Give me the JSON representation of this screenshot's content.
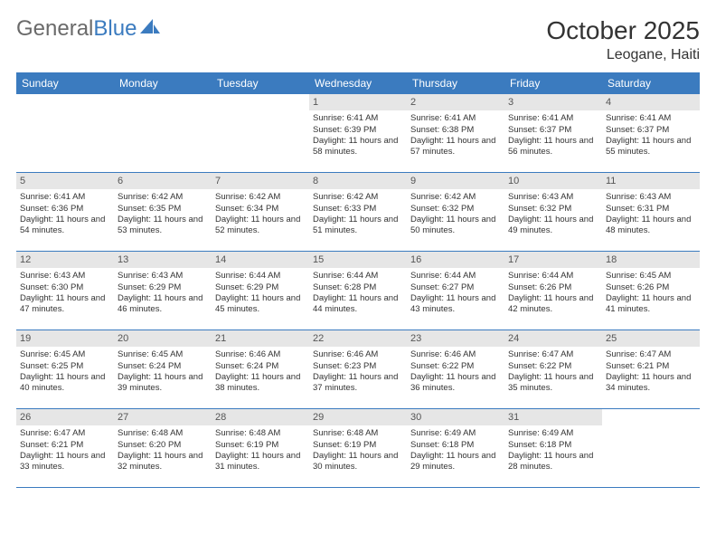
{
  "logo": {
    "text1": "General",
    "text2": "Blue"
  },
  "title": "October 2025",
  "location": "Leogane, Haiti",
  "colors": {
    "header_bg": "#3b7bbf",
    "header_text": "#ffffff",
    "daynum_bg": "#e6e6e6",
    "row_border": "#3b7bbf",
    "logo_gray": "#6a6a6a",
    "logo_blue": "#3b7bbf"
  },
  "weekdays": [
    "Sunday",
    "Monday",
    "Tuesday",
    "Wednesday",
    "Thursday",
    "Friday",
    "Saturday"
  ],
  "weeks": [
    [
      {
        "empty": true
      },
      {
        "empty": true
      },
      {
        "empty": true
      },
      {
        "num": "1",
        "sunrise": "6:41 AM",
        "sunset": "6:39 PM",
        "dh": "11",
        "dm": "58"
      },
      {
        "num": "2",
        "sunrise": "6:41 AM",
        "sunset": "6:38 PM",
        "dh": "11",
        "dm": "57"
      },
      {
        "num": "3",
        "sunrise": "6:41 AM",
        "sunset": "6:37 PM",
        "dh": "11",
        "dm": "56"
      },
      {
        "num": "4",
        "sunrise": "6:41 AM",
        "sunset": "6:37 PM",
        "dh": "11",
        "dm": "55"
      }
    ],
    [
      {
        "num": "5",
        "sunrise": "6:41 AM",
        "sunset": "6:36 PM",
        "dh": "11",
        "dm": "54"
      },
      {
        "num": "6",
        "sunrise": "6:42 AM",
        "sunset": "6:35 PM",
        "dh": "11",
        "dm": "53"
      },
      {
        "num": "7",
        "sunrise": "6:42 AM",
        "sunset": "6:34 PM",
        "dh": "11",
        "dm": "52"
      },
      {
        "num": "8",
        "sunrise": "6:42 AM",
        "sunset": "6:33 PM",
        "dh": "11",
        "dm": "51"
      },
      {
        "num": "9",
        "sunrise": "6:42 AM",
        "sunset": "6:32 PM",
        "dh": "11",
        "dm": "50"
      },
      {
        "num": "10",
        "sunrise": "6:43 AM",
        "sunset": "6:32 PM",
        "dh": "11",
        "dm": "49"
      },
      {
        "num": "11",
        "sunrise": "6:43 AM",
        "sunset": "6:31 PM",
        "dh": "11",
        "dm": "48"
      }
    ],
    [
      {
        "num": "12",
        "sunrise": "6:43 AM",
        "sunset": "6:30 PM",
        "dh": "11",
        "dm": "47"
      },
      {
        "num": "13",
        "sunrise": "6:43 AM",
        "sunset": "6:29 PM",
        "dh": "11",
        "dm": "46"
      },
      {
        "num": "14",
        "sunrise": "6:44 AM",
        "sunset": "6:29 PM",
        "dh": "11",
        "dm": "45"
      },
      {
        "num": "15",
        "sunrise": "6:44 AM",
        "sunset": "6:28 PM",
        "dh": "11",
        "dm": "44"
      },
      {
        "num": "16",
        "sunrise": "6:44 AM",
        "sunset": "6:27 PM",
        "dh": "11",
        "dm": "43"
      },
      {
        "num": "17",
        "sunrise": "6:44 AM",
        "sunset": "6:26 PM",
        "dh": "11",
        "dm": "42"
      },
      {
        "num": "18",
        "sunrise": "6:45 AM",
        "sunset": "6:26 PM",
        "dh": "11",
        "dm": "41"
      }
    ],
    [
      {
        "num": "19",
        "sunrise": "6:45 AM",
        "sunset": "6:25 PM",
        "dh": "11",
        "dm": "40"
      },
      {
        "num": "20",
        "sunrise": "6:45 AM",
        "sunset": "6:24 PM",
        "dh": "11",
        "dm": "39"
      },
      {
        "num": "21",
        "sunrise": "6:46 AM",
        "sunset": "6:24 PM",
        "dh": "11",
        "dm": "38"
      },
      {
        "num": "22",
        "sunrise": "6:46 AM",
        "sunset": "6:23 PM",
        "dh": "11",
        "dm": "37"
      },
      {
        "num": "23",
        "sunrise": "6:46 AM",
        "sunset": "6:22 PM",
        "dh": "11",
        "dm": "36"
      },
      {
        "num": "24",
        "sunrise": "6:47 AM",
        "sunset": "6:22 PM",
        "dh": "11",
        "dm": "35"
      },
      {
        "num": "25",
        "sunrise": "6:47 AM",
        "sunset": "6:21 PM",
        "dh": "11",
        "dm": "34"
      }
    ],
    [
      {
        "num": "26",
        "sunrise": "6:47 AM",
        "sunset": "6:21 PM",
        "dh": "11",
        "dm": "33"
      },
      {
        "num": "27",
        "sunrise": "6:48 AM",
        "sunset": "6:20 PM",
        "dh": "11",
        "dm": "32"
      },
      {
        "num": "28",
        "sunrise": "6:48 AM",
        "sunset": "6:19 PM",
        "dh": "11",
        "dm": "31"
      },
      {
        "num": "29",
        "sunrise": "6:48 AM",
        "sunset": "6:19 PM",
        "dh": "11",
        "dm": "30"
      },
      {
        "num": "30",
        "sunrise": "6:49 AM",
        "sunset": "6:18 PM",
        "dh": "11",
        "dm": "29"
      },
      {
        "num": "31",
        "sunrise": "6:49 AM",
        "sunset": "6:18 PM",
        "dh": "11",
        "dm": "28"
      },
      {
        "empty": true
      }
    ]
  ]
}
